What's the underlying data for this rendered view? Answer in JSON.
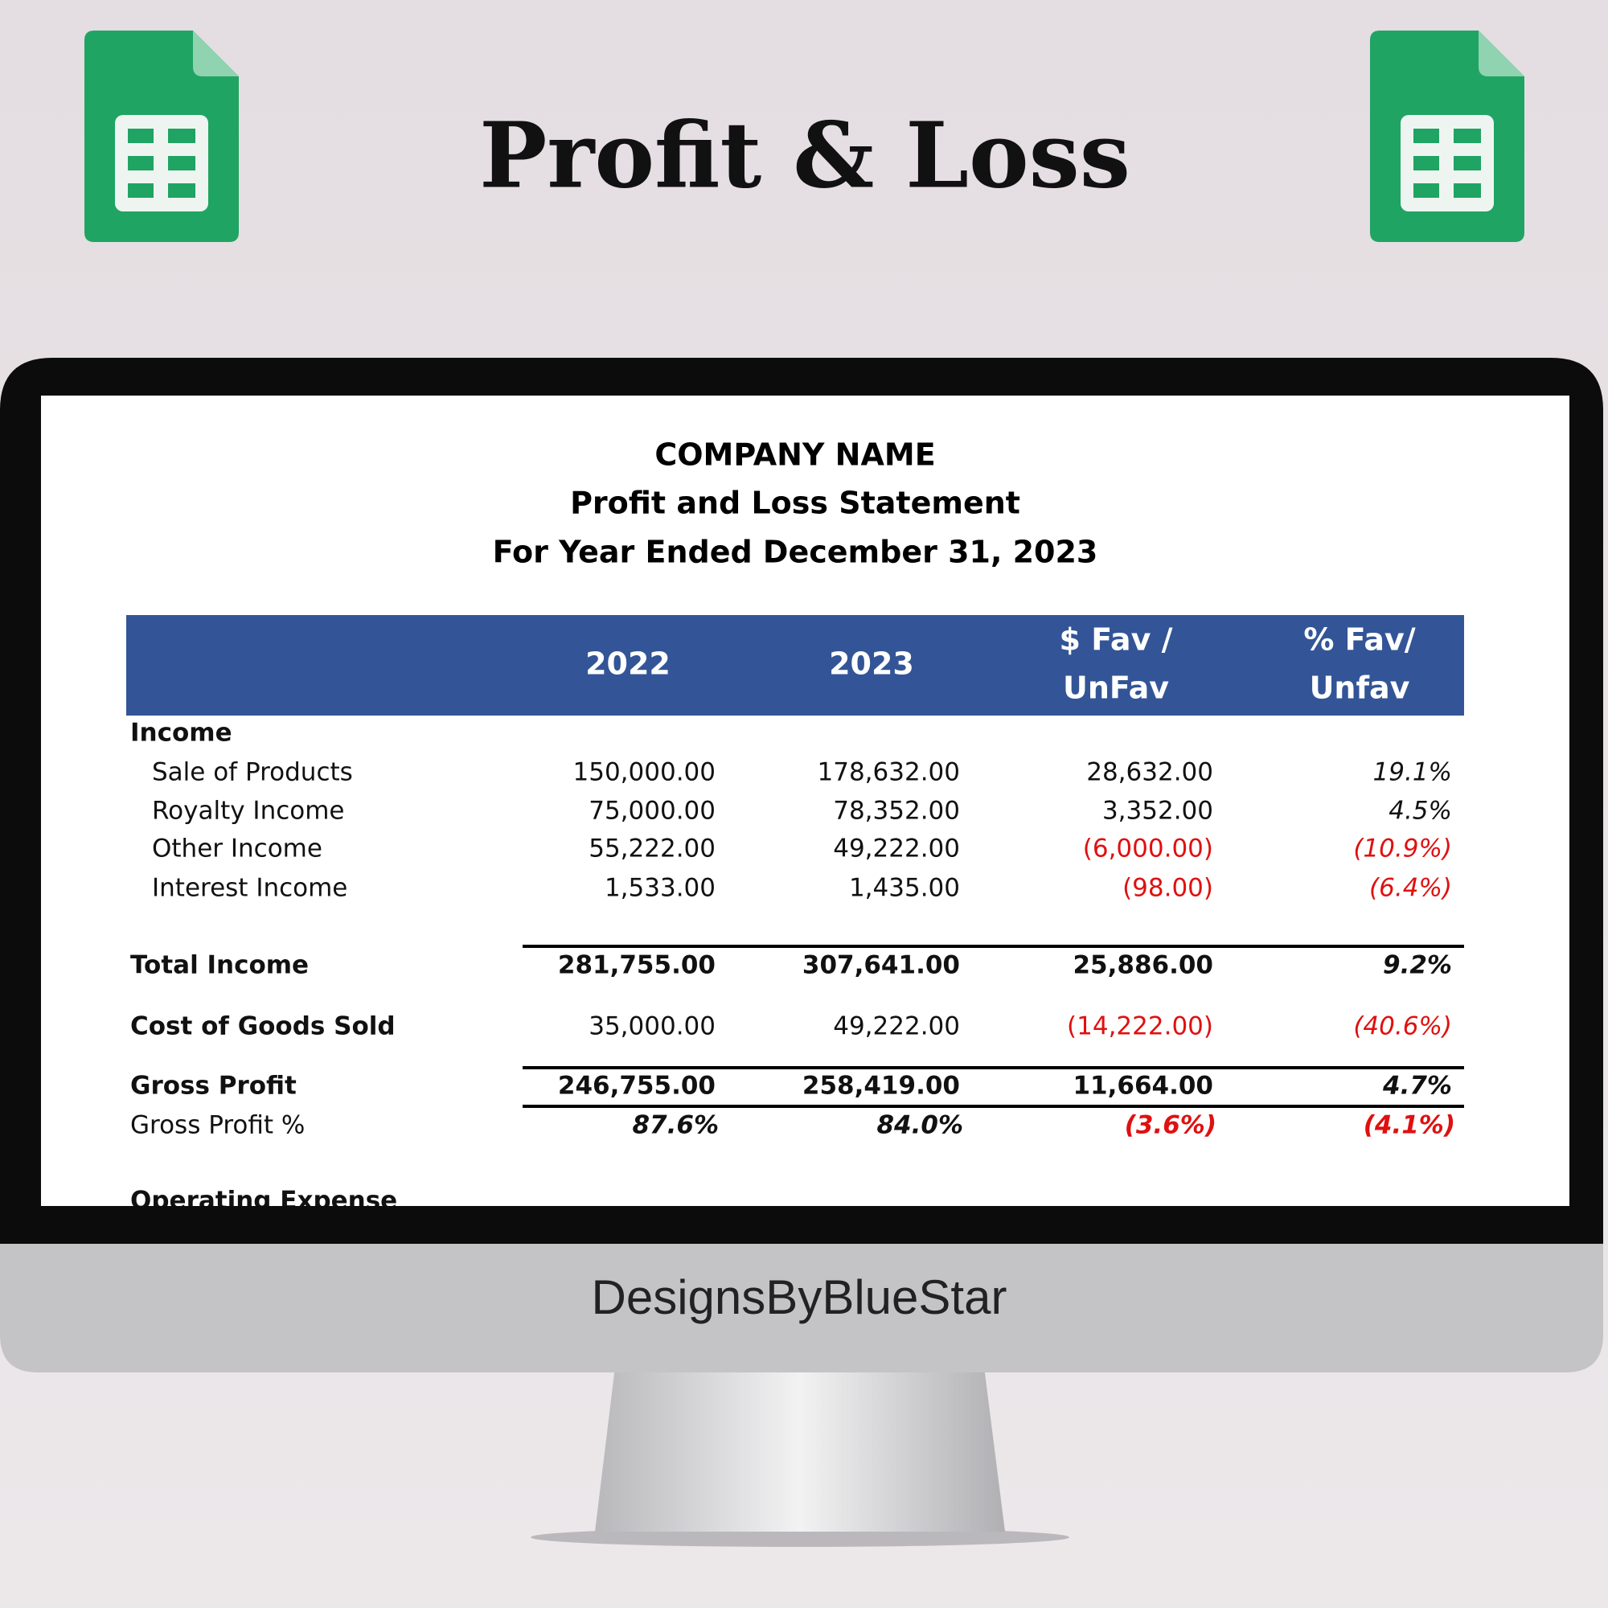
{
  "header": {
    "title": "Profit & Loss"
  },
  "statement": {
    "company": "COMPANY NAME",
    "heading": "Profit and Loss Statement",
    "period": "For Year Ended December 31, 2023"
  },
  "table": {
    "columns": [
      [
        "2022"
      ],
      [
        "2023"
      ],
      [
        "$ Fav /",
        "UnFav"
      ],
      [
        "% Fav/",
        "Unfav"
      ]
    ],
    "rows": [
      {
        "label": "Income"
      },
      {
        "label": "Sale of Products",
        "values": [
          "150,000.00",
          "178,632.00",
          "28,632.00",
          "19.1%"
        ]
      },
      {
        "label": "Royalty Income",
        "values": [
          "75,000.00",
          "78,352.00",
          "3,352.00",
          "4.5%"
        ]
      },
      {
        "label": "Other Income",
        "values": [
          "55,222.00",
          "49,222.00",
          "(6,000.00)",
          "(10.9%)"
        ]
      },
      {
        "label": "Interest Income",
        "values": [
          "1,533.00",
          "1,435.00",
          "(98.00)",
          "(6.4%)"
        ]
      },
      {
        "label": "Total Income",
        "values": [
          "281,755.00",
          "307,641.00",
          "25,886.00",
          "9.2%"
        ]
      },
      {
        "label": "Cost of Goods Sold",
        "values": [
          "35,000.00",
          "49,222.00",
          "(14,222.00)",
          "(40.6%)"
        ]
      },
      {
        "label": "Gross Profit",
        "values": [
          "246,755.00",
          "258,419.00",
          "11,664.00",
          "4.7%"
        ]
      },
      {
        "label": "Gross Profit %",
        "values": [
          "87.6%",
          "84.0%",
          "(3.6%)",
          "(4.1%)"
        ]
      },
      {
        "label": "Operating Expense"
      }
    ]
  },
  "footer": {
    "brand": "DesignsByBlueStar"
  }
}
